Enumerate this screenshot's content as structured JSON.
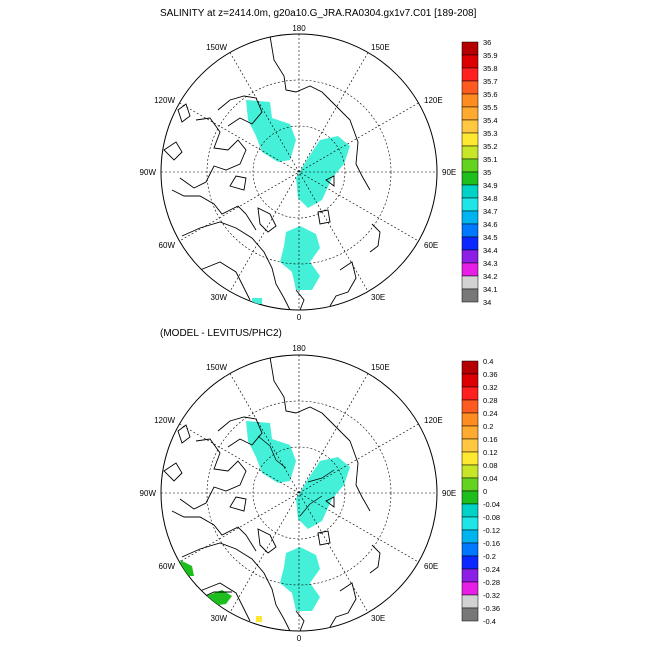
{
  "top_panel": {
    "title": "SALINITY at z=2414.0m, g20a10.G_JRA.RA0304.gx1v7.C01 [189-208]",
    "lon_labels": [
      "180",
      "150E",
      "120E",
      "90E",
      "60E",
      "30E",
      "0",
      "30W",
      "60W",
      "90W",
      "120W",
      "150W"
    ],
    "colorbar": {
      "labels": [
        "36",
        "35.9",
        "35.8",
        "35.7",
        "35.6",
        "35.5",
        "35.4",
        "35.3",
        "35.2",
        "35.1",
        "35",
        "34.9",
        "34.8",
        "34.7",
        "34.6",
        "34.5",
        "34.4",
        "34.3",
        "34.2",
        "34.1",
        "34"
      ],
      "colors": [
        "#b40000",
        "#dc0000",
        "#ff2020",
        "#ff5a20",
        "#ff8c20",
        "#ffaa30",
        "#ffc840",
        "#ffe830",
        "#c8e628",
        "#64d21e",
        "#1ebe1e",
        "#00d2c8",
        "#1ee6e6",
        "#00b4f0",
        "#0078ff",
        "#0a28ff",
        "#8c1ee6",
        "#e61ee6",
        "#d2d2d2",
        "#787878"
      ]
    }
  },
  "bottom_panel": {
    "title": "(MODEL - LEVITUS/PHC2)",
    "lon_labels": [
      "180",
      "150E",
      "120E",
      "90E",
      "60E",
      "30E",
      "0",
      "30W",
      "60W",
      "90W",
      "120W",
      "150W"
    ],
    "colorbar": {
      "labels": [
        "0.4",
        "0.36",
        "0.32",
        "0.28",
        "0.24",
        "0.2",
        "0.16",
        "0.12",
        "0.08",
        "0.04",
        "0",
        "-0.04",
        "-0.08",
        "-0.12",
        "-0.16",
        "-0.2",
        "-0.24",
        "-0.28",
        "-0.32",
        "-0.36",
        "-0.4"
      ],
      "colors": [
        "#b40000",
        "#dc0000",
        "#ff2020",
        "#ff5a20",
        "#ff8c20",
        "#ffaa30",
        "#ffc840",
        "#ffe830",
        "#c8e628",
        "#64d21e",
        "#1ebe1e",
        "#00d2c8",
        "#1ee6e6",
        "#00b4f0",
        "#0078ff",
        "#0a28ff",
        "#8c1ee6",
        "#e61ee6",
        "#d2d2d2",
        "#787878"
      ]
    }
  },
  "colors": {
    "ocean_fill": "#44f0d8",
    "land_line": "#000000",
    "anomaly_green": "#1ebe1e",
    "anomaly_yellow": "#ffe830"
  }
}
